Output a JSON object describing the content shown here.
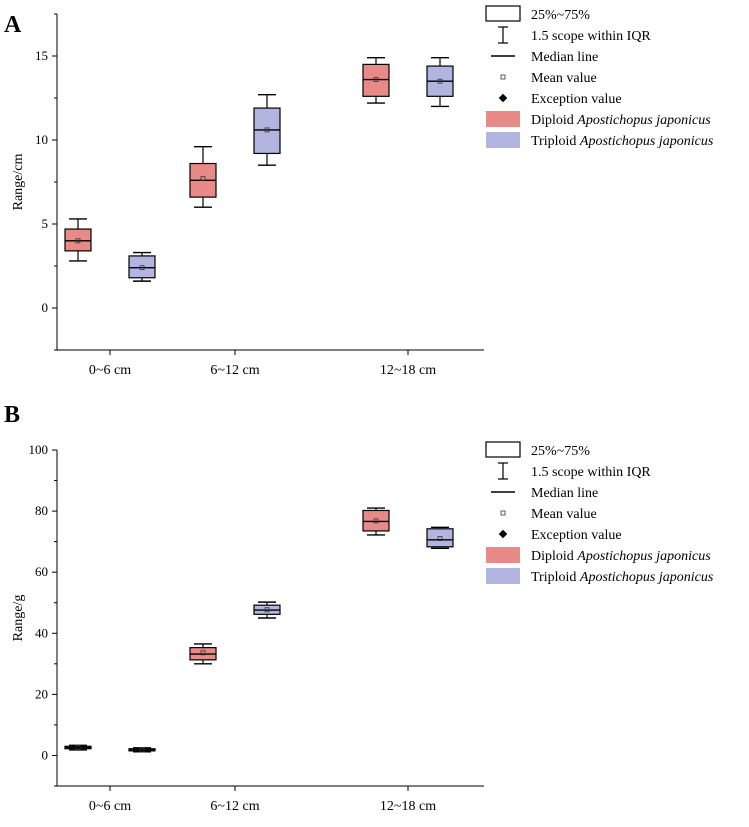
{
  "panels": [
    {
      "letter": "A",
      "legend": [
        {
          "icon": "box-outline-icon",
          "label": "25%~75%"
        },
        {
          "icon": "whisker-icon",
          "label": "1.5 scope within IQR"
        },
        {
          "icon": "median-line-icon",
          "label": "Median line"
        },
        {
          "icon": "mean-marker-icon",
          "label": "Mean value"
        },
        {
          "icon": "outlier-marker-icon",
          "label": "Exception value"
        },
        {
          "icon": "diploid-swatch-icon",
          "label_prefix": "Diploid ",
          "label_species": "Apostichopus japonicus"
        },
        {
          "icon": "triploid-swatch-icon",
          "label_prefix": "Triploid ",
          "label_species": "Apostichopus japonicus"
        }
      ]
    },
    {
      "letter": "B",
      "legend": [
        {
          "icon": "box-outline-icon",
          "label": "25%~75%"
        },
        {
          "icon": "whisker-icon",
          "label": "1.5 scope within IQR"
        },
        {
          "icon": "median-line-icon",
          "label": "Median line"
        },
        {
          "icon": "mean-marker-icon",
          "label": "Mean value"
        },
        {
          "icon": "outlier-marker-icon",
          "label": "Exception value"
        },
        {
          "icon": "diploid-swatch-icon",
          "label_prefix": "Diploid ",
          "label_species": "Apostichopus japonicus"
        },
        {
          "icon": "triploid-swatch-icon",
          "label_prefix": "Triploid ",
          "label_species": "Apostichopus japonicus"
        }
      ]
    }
  ],
  "colors": {
    "diploid": "#e88a88",
    "triploid": "#b1b5df",
    "axis": "#000000"
  },
  "chart_data": [
    {
      "type": "box",
      "panel": "A",
      "ylabel": "Range/cm",
      "xlabel": "",
      "categories": [
        "0~6 cm",
        "6~12 cm",
        "12~18 cm"
      ],
      "ylim": [
        -2.5,
        17.5
      ],
      "yticks": [
        0,
        5,
        10,
        15
      ],
      "series": [
        {
          "name": "Diploid Apostichopus japonicus",
          "boxes": [
            {
              "min": 2.8,
              "q1": 3.4,
              "median": 4.0,
              "q3": 4.7,
              "max": 5.3,
              "mean": 4.0
            },
            {
              "min": 6.0,
              "q1": 6.6,
              "median": 7.6,
              "q3": 8.6,
              "max": 9.6,
              "mean": 7.7
            },
            {
              "min": 12.2,
              "q1": 12.6,
              "median": 13.6,
              "q3": 14.5,
              "max": 14.9,
              "mean": 13.6
            }
          ]
        },
        {
          "name": "Triploid Apostichopus japonicus",
          "boxes": [
            {
              "min": 1.6,
              "q1": 1.8,
              "median": 2.4,
              "q3": 3.1,
              "max": 3.3,
              "mean": 2.4
            },
            {
              "min": 8.5,
              "q1": 9.2,
              "median": 10.6,
              "q3": 11.9,
              "max": 12.7,
              "mean": 10.6
            },
            {
              "min": 12.0,
              "q1": 12.6,
              "median": 13.5,
              "q3": 14.4,
              "max": 14.9,
              "mean": 13.5
            }
          ]
        }
      ]
    },
    {
      "type": "box",
      "panel": "B",
      "ylabel": "Range/g",
      "xlabel": "",
      "categories": [
        "0~6 cm",
        "6~12 cm",
        "12~18 cm"
      ],
      "ylim": [
        -10,
        100
      ],
      "yticks": [
        0,
        20,
        40,
        60,
        80,
        100
      ],
      "series": [
        {
          "name": "Diploid Apostichopus japonicus",
          "boxes": [
            {
              "min": 1.8,
              "q1": 2.2,
              "median": 2.6,
              "q3": 3.0,
              "max": 3.3,
              "mean": 2.6
            },
            {
              "min": 30.0,
              "q1": 31.3,
              "median": 33.2,
              "q3": 35.3,
              "max": 36.5,
              "mean": 33.6
            },
            {
              "min": 72.2,
              "q1": 73.5,
              "median": 76.6,
              "q3": 80.2,
              "max": 81.0,
              "mean": 76.8
            }
          ]
        },
        {
          "name": "Triploid Apostichopus japonicus",
          "boxes": [
            {
              "min": 1.2,
              "q1": 1.5,
              "median": 1.8,
              "q3": 2.2,
              "max": 2.5,
              "mean": 1.8
            },
            {
              "min": 45.0,
              "q1": 46.2,
              "median": 47.6,
              "q3": 49.2,
              "max": 50.2,
              "mean": 47.7
            },
            {
              "min": 67.8,
              "q1": 68.3,
              "median": 70.6,
              "q3": 74.2,
              "max": 74.7,
              "mean": 71.0
            }
          ]
        }
      ]
    }
  ]
}
